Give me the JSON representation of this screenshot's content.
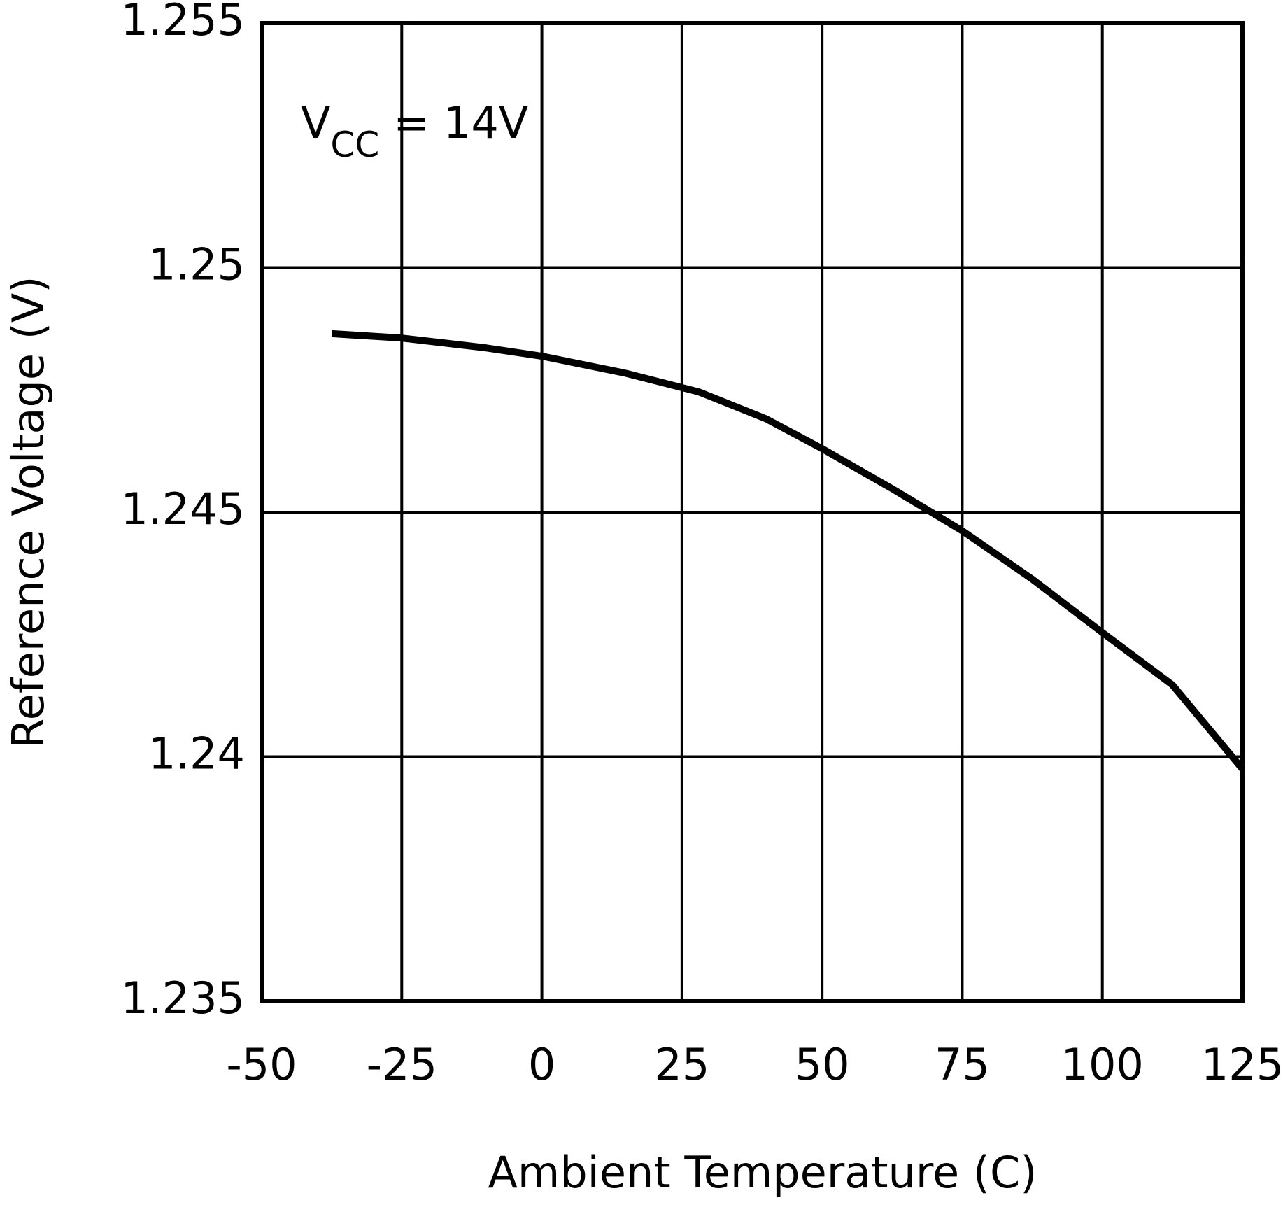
{
  "chart_data": {
    "type": "line",
    "xlabel": "Ambient Temperature (C)",
    "ylabel": "Reference Voltage (V)",
    "annotation": [
      "V",
      "CC",
      "= 14V"
    ],
    "x": [
      -37.5,
      -25,
      -10,
      0,
      15,
      28,
      40,
      50,
      62.5,
      75,
      87.5,
      100,
      112.5,
      125
    ],
    "series": [
      {
        "color": "#000000",
        "values": [
          1.24865,
          1.24856,
          1.24836,
          1.24819,
          1.24784,
          1.24746,
          1.24691,
          1.2463,
          1.24548,
          1.24462,
          1.24363,
          1.24254,
          1.24147,
          1.23975
        ]
      }
    ],
    "xlim": [
      -50,
      125
    ],
    "xticks": [
      -50,
      -25,
      0,
      25,
      50,
      75,
      100,
      125
    ],
    "ylim": [
      1.235,
      1.255
    ],
    "yticks": [
      1.235,
      1.24,
      1.245,
      1.25,
      1.255
    ],
    "grid": true
  }
}
